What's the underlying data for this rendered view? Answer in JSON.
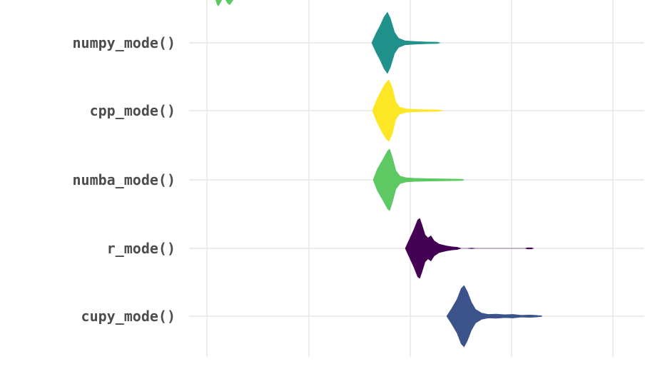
{
  "chart_data": {
    "type": "violin",
    "title": "",
    "xlabel": "",
    "ylabel": "",
    "x_scale": "log",
    "grid": true,
    "categories": [
      "cupy_mode()",
      "r_mode()",
      "numba_mode()",
      "cpp_mode()",
      "numpy_mode()"
    ],
    "colors": {
      "cupy_mode()": "#3b528b",
      "r_mode()": "#440154",
      "numba_mode()": "#5ec962",
      "cpp_mode()": "#fde725",
      "numpy_mode()": "#21918c",
      "partial_top": "#5ec962"
    },
    "series": [
      {
        "name": "cupy_mode()",
        "distribution": [
          [
            0.0,
            0.0
          ],
          [
            0.012,
            0.25
          ],
          [
            0.025,
            0.55
          ],
          [
            0.035,
            0.9
          ],
          [
            0.042,
            1.0
          ],
          [
            0.05,
            0.8
          ],
          [
            0.06,
            0.45
          ],
          [
            0.07,
            0.22
          ],
          [
            0.085,
            0.1
          ],
          [
            0.1,
            0.06
          ],
          [
            0.12,
            0.07
          ],
          [
            0.14,
            0.05
          ],
          [
            0.16,
            0.06
          ],
          [
            0.18,
            0.03
          ],
          [
            0.2,
            0.04
          ],
          [
            0.215,
            0.03
          ],
          [
            0.23,
            0.01
          ]
        ]
      },
      {
        "name": "r_mode()",
        "distribution": [
          [
            0.0,
            0.0
          ],
          [
            0.01,
            0.3
          ],
          [
            0.02,
            0.6
          ],
          [
            0.03,
            0.95
          ],
          [
            0.035,
            1.0
          ],
          [
            0.04,
            0.8
          ],
          [
            0.048,
            0.45
          ],
          [
            0.055,
            0.35
          ],
          [
            0.062,
            0.42
          ],
          [
            0.07,
            0.25
          ],
          [
            0.082,
            0.14
          ],
          [
            0.1,
            0.08
          ],
          [
            0.115,
            0.05
          ],
          [
            0.125,
            0.04
          ],
          [
            0.135,
            0.0
          ],
          [
            0.15,
            0.0
          ],
          [
            0.16,
            0.01
          ],
          [
            0.17,
            0.0
          ],
          [
            0.29,
            0.0
          ],
          [
            0.295,
            0.02
          ],
          [
            0.305,
            0.02
          ],
          [
            0.31,
            0.0
          ]
        ]
      },
      {
        "name": "numba_mode()",
        "distribution": [
          [
            0.0,
            0.0
          ],
          [
            0.01,
            0.35
          ],
          [
            0.025,
            0.7
          ],
          [
            0.035,
            0.95
          ],
          [
            0.04,
            1.0
          ],
          [
            0.047,
            0.7
          ],
          [
            0.055,
            0.3
          ],
          [
            0.065,
            0.12
          ],
          [
            0.08,
            0.07
          ],
          [
            0.1,
            0.05
          ],
          [
            0.14,
            0.04
          ],
          [
            0.18,
            0.03
          ],
          [
            0.215,
            0.02
          ],
          [
            0.22,
            0.0
          ]
        ]
      },
      {
        "name": "cpp_mode()",
        "distribution": [
          [
            0.0,
            0.0
          ],
          [
            0.01,
            0.35
          ],
          [
            0.025,
            0.75
          ],
          [
            0.035,
            0.95
          ],
          [
            0.04,
            1.0
          ],
          [
            0.048,
            0.75
          ],
          [
            0.056,
            0.3
          ],
          [
            0.065,
            0.12
          ],
          [
            0.08,
            0.06
          ],
          [
            0.1,
            0.04
          ],
          [
            0.13,
            0.03
          ],
          [
            0.16,
            0.02
          ],
          [
            0.17,
            0.0
          ]
        ]
      },
      {
        "name": "numpy_mode()",
        "distribution": [
          [
            0.0,
            0.0
          ],
          [
            0.01,
            0.3
          ],
          [
            0.02,
            0.55
          ],
          [
            0.03,
            0.85
          ],
          [
            0.038,
            1.0
          ],
          [
            0.045,
            0.8
          ],
          [
            0.055,
            0.35
          ],
          [
            0.065,
            0.15
          ],
          [
            0.08,
            0.07
          ],
          [
            0.1,
            0.05
          ],
          [
            0.13,
            0.03
          ],
          [
            0.16,
            0.02
          ],
          [
            0.165,
            0.0
          ]
        ]
      }
    ]
  }
}
